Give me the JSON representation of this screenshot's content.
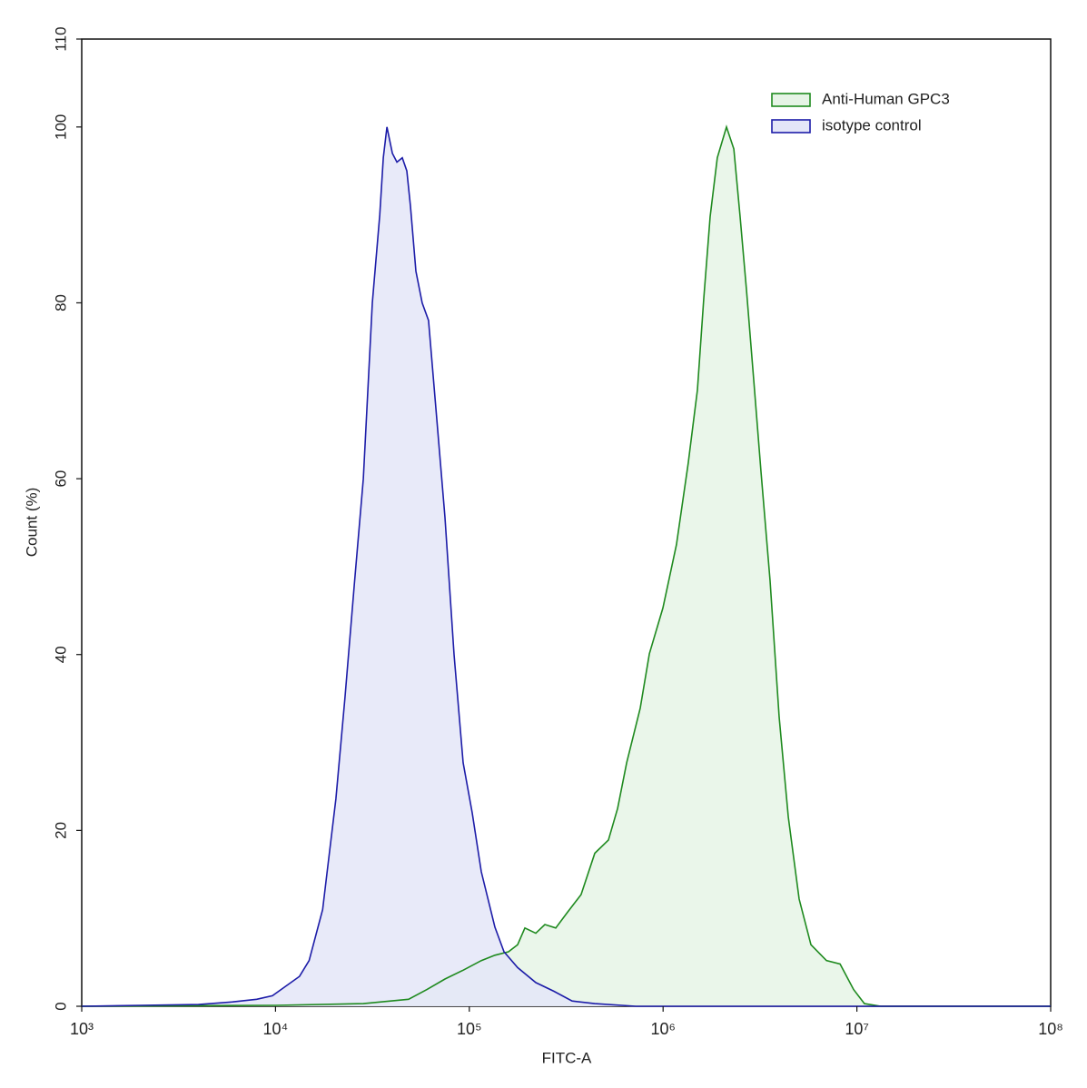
{
  "chart_data": {
    "type": "histogram-overlay",
    "xlabel": "FITC-A",
    "ylabel": "Count (%)",
    "xscale": "log",
    "xlim": [
      1000,
      100000000
    ],
    "xticks": [
      {
        "value": 1000,
        "label": "10³"
      },
      {
        "value": 10000,
        "label": "10⁴"
      },
      {
        "value": 100000,
        "label": "10⁵"
      },
      {
        "value": 1000000,
        "label": "10⁶"
      },
      {
        "value": 10000000,
        "label": "10⁷"
      },
      {
        "value": 100000000,
        "label": "10⁸"
      }
    ],
    "ylim": [
      0,
      110
    ],
    "yticks": [
      0,
      20,
      40,
      60,
      80,
      100,
      110
    ],
    "legend": "top-right",
    "series": [
      {
        "name": "Anti-Human GPC3",
        "color": "#1f8a1f",
        "fill": "#e6f4e6",
        "x": [
          1000,
          10000,
          28400,
          48600,
          60400,
          74900,
          92900,
          115300,
          135600,
          159200,
          177500,
          193600,
          220300,
          245500,
          279300,
          321300,
          377600,
          444300,
          522300,
          582100,
          648700,
          762200,
          849200,
          998000,
          1172000,
          1349000,
          1503000,
          1621000,
          1748000,
          1905000,
          2123000,
          2317000,
          2496000,
          2692000,
          2937000,
          3199000,
          3565000,
          3972000,
          4426000,
          5036000,
          5794000,
          6966000,
          8187000,
          9619000,
          10940000,
          13300000,
          100000000
        ],
        "values": [
          0,
          0.1,
          0.3,
          0.8,
          1.9,
          3.1,
          4.1,
          5.2,
          5.8,
          6.2,
          7,
          8.9,
          8.3,
          9.3,
          8.9,
          10.7,
          12.7,
          17.4,
          18.9,
          22.5,
          27.7,
          33.9,
          40.1,
          45.3,
          52.5,
          61.8,
          70.1,
          80.5,
          89.8,
          96.5,
          100,
          97.5,
          89.8,
          81.5,
          71.1,
          60.8,
          48.4,
          32.9,
          21.5,
          12.2,
          7,
          5.2,
          4.8,
          1.9,
          0.3,
          0,
          0
        ]
      },
      {
        "name": "isotype control",
        "color": "#1c1ca8",
        "fill": "#e4e6f8",
        "x": [
          1000,
          2000,
          4000,
          6000,
          8000,
          9640,
          13300,
          14900,
          17500,
          18400,
          20500,
          22800,
          25500,
          28400,
          31600,
          34500,
          36000,
          37600,
          40100,
          42300,
          45100,
          47600,
          49700,
          53000,
          57100,
          61600,
          67200,
          74900,
          83400,
          92900,
          103500,
          115300,
          135600,
          151000,
          177500,
          220300,
          273400,
          339100,
          444300,
          722600,
          100000000
        ],
        "values": [
          0,
          0.1,
          0.2,
          0.5,
          0.8,
          1.2,
          3.4,
          5.2,
          11,
          15,
          23.6,
          35,
          48,
          60,
          80,
          90,
          96.5,
          100,
          97,
          96,
          96.5,
          95,
          91,
          83.6,
          80,
          78,
          68,
          55.6,
          40,
          27.7,
          22,
          15.3,
          9,
          6.2,
          4.4,
          2.7,
          1.7,
          0.6,
          0.3,
          0,
          0
        ]
      }
    ]
  }
}
